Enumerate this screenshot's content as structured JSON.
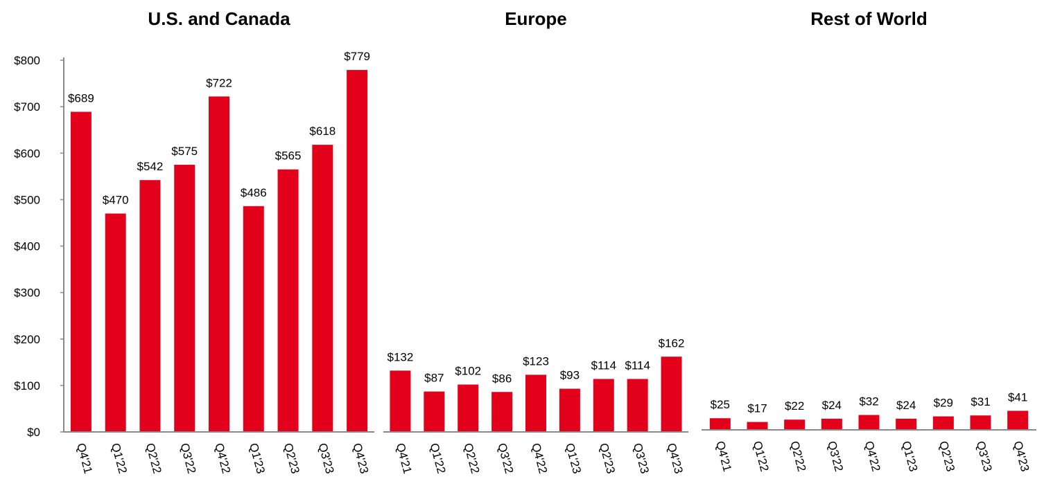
{
  "chart_data": [
    {
      "type": "bar",
      "title": "U.S. and Canada",
      "categories": [
        "Q4'21",
        "Q1'22",
        "Q2'22",
        "Q3'22",
        "Q4'22",
        "Q1'23",
        "Q2'23",
        "Q3'23",
        "Q4'23"
      ],
      "values": [
        689,
        470,
        542,
        575,
        722,
        486,
        565,
        618,
        779
      ],
      "value_labels": [
        "$689",
        "$470",
        "$542",
        "$575",
        "$722",
        "$486",
        "$565",
        "$618",
        "$779"
      ],
      "color": "#e2001a",
      "ylim": [
        0,
        800
      ],
      "yticks": [
        {
          "value": 0,
          "label": "$0"
        },
        {
          "value": 100,
          "label": "$100"
        },
        {
          "value": 200,
          "label": "$200"
        },
        {
          "value": 300,
          "label": "$300"
        },
        {
          "value": 400,
          "label": "$400"
        },
        {
          "value": 500,
          "label": "$500"
        },
        {
          "value": 600,
          "label": "$600"
        },
        {
          "value": 700,
          "label": "$700"
        },
        {
          "value": 800,
          "label": "$800"
        }
      ]
    },
    {
      "type": "bar",
      "title": "Europe",
      "categories": [
        "Q4'21",
        "Q1'22",
        "Q2'22",
        "Q3'22",
        "Q4'22",
        "Q1'23",
        "Q2'23",
        "Q3'23",
        "Q4'23"
      ],
      "values": [
        132,
        87,
        102,
        86,
        123,
        93,
        114,
        114,
        162
      ],
      "value_labels": [
        "$132",
        "$87",
        "$102",
        "$86",
        "$123",
        "$93",
        "$114",
        "$114",
        "$162"
      ],
      "color": "#e2001a",
      "ylim": [
        0,
        800
      ]
    },
    {
      "type": "bar",
      "title": "Rest of World",
      "categories": [
        "Q4'21",
        "Q1'22",
        "Q2'22",
        "Q3'22",
        "Q4'22",
        "Q1'23",
        "Q2'23",
        "Q3'23",
        "Q4'23"
      ],
      "values": [
        25,
        17,
        22,
        24,
        32,
        24,
        29,
        31,
        41
      ],
      "value_labels": [
        "$25",
        "$17",
        "$22",
        "$24",
        "$32",
        "$24",
        "$29",
        "$31",
        "$41"
      ],
      "color": "#e2001a",
      "ylim": [
        0,
        800
      ]
    }
  ]
}
